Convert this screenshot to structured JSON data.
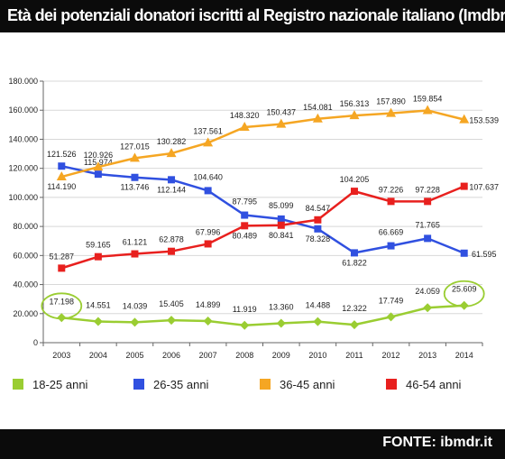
{
  "header": {
    "title": "Età dei potenziali donatori iscritti al Registro nazionale italiano (Imdbr)"
  },
  "footer": {
    "source": "FONTE: ibmdr.it"
  },
  "colors": {
    "s1": "#9ACD32",
    "s2": "#3050E0",
    "s3": "#F5A623",
    "s4": "#E8201E",
    "grid": "#d8d8d8",
    "axis": "#666666",
    "highlight": "#9ACD32"
  },
  "chart_data": {
    "type": "line",
    "categories": [
      "2003",
      "2004",
      "2005",
      "2006",
      "2007",
      "2008",
      "2009",
      "2010",
      "2011",
      "2012",
      "2013",
      "2014"
    ],
    "ylim": [
      0,
      180000
    ],
    "yticks": [
      0,
      20000,
      40000,
      60000,
      80000,
      100000,
      120000,
      140000,
      160000,
      180000
    ],
    "ytick_labels": [
      "0",
      "20.000",
      "40.000",
      "60.000",
      "80.000",
      "100.000",
      "120.000",
      "140.000",
      "160.000",
      "180.000"
    ],
    "grid": true,
    "legend_position": "bottom",
    "series": [
      {
        "name": "18-25 anni",
        "marker": "diamond",
        "values": [
          17198,
          14551,
          14039,
          15405,
          14899,
          11919,
          13360,
          14488,
          12322,
          17749,
          24059,
          25609
        ],
        "labels": [
          "17.198",
          "14.551",
          "14.039",
          "15.405",
          "14.899",
          "11.919",
          "13.360",
          "14.488",
          "12.322",
          "17.749",
          "24.059",
          "25.609"
        ]
      },
      {
        "name": "26-35 anni",
        "marker": "square",
        "values": [
          121526,
          115974,
          113746,
          112144,
          104640,
          87795,
          85099,
          78328,
          61822,
          66669,
          71765,
          61595
        ],
        "labels": [
          "121.526",
          "115.974",
          "113.746",
          "112.144",
          "104.640",
          "87.795",
          "85.099",
          "78.328",
          "61.822",
          "66.669",
          "71.765",
          "61.595"
        ]
      },
      {
        "name": "36-45 anni",
        "marker": "triangle",
        "values": [
          114190,
          120926,
          127015,
          130282,
          137561,
          148320,
          150437,
          154081,
          156313,
          157890,
          159854,
          153539
        ],
        "labels": [
          "114.190",
          "120.926",
          "127.015",
          "130.282",
          "137.561",
          "148.320",
          "150.437",
          "154.081",
          "156.313",
          "157.890",
          "159.854",
          "153.539"
        ]
      },
      {
        "name": "46-54 anni",
        "marker": "square",
        "values": [
          51287,
          59165,
          61121,
          62878,
          67996,
          80489,
          80841,
          84547,
          104205,
          97226,
          97228,
          107637
        ],
        "labels": [
          "51.287",
          "59.165",
          "61.121",
          "62.878",
          "67.996",
          "80.489",
          "80.841",
          "84.547",
          "104.205",
          "97.226",
          "97.228",
          "107.637"
        ]
      }
    ]
  }
}
